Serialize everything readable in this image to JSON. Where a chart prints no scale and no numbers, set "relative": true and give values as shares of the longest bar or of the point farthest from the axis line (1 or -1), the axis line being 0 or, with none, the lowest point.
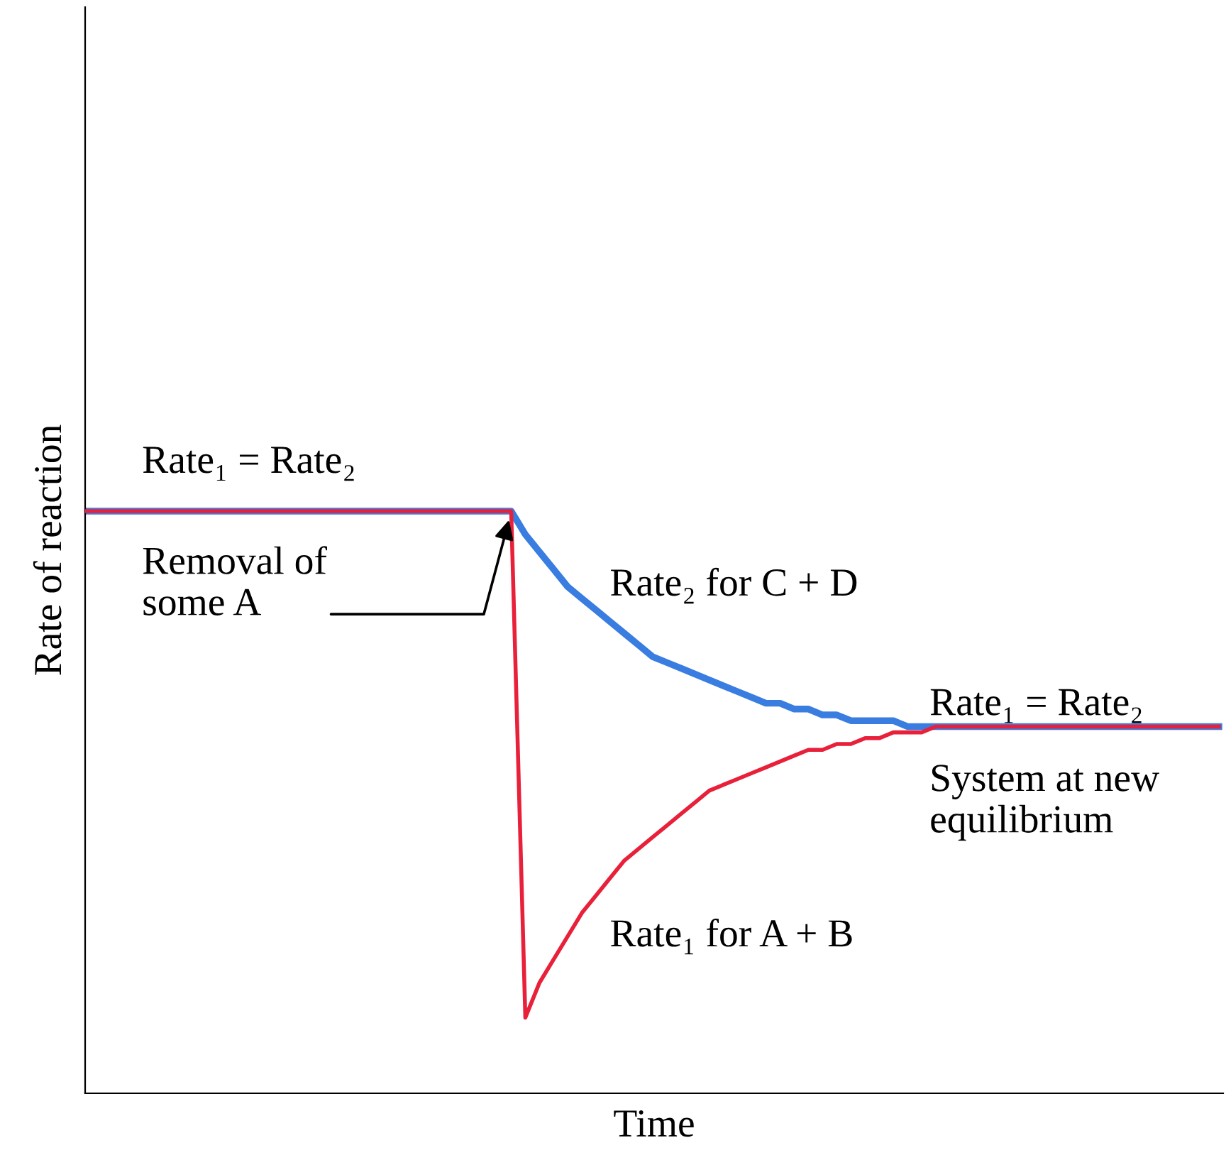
{
  "chart_data": {
    "type": "line",
    "relative": true,
    "xlabel": "Time",
    "ylabel": "Rate of reaction",
    "categories": [
      null,
      null,
      null,
      null,
      null,
      null,
      null,
      null,
      null,
      null,
      null,
      null,
      null,
      null,
      null,
      null,
      null,
      null,
      null,
      null,
      null,
      null,
      null,
      null,
      null,
      null,
      null,
      null,
      null,
      null,
      null,
      null,
      null,
      null,
      null,
      null,
      null,
      null,
      null,
      null,
      null,
      null,
      null,
      null,
      null,
      null,
      null,
      null,
      null,
      null,
      null,
      null,
      null,
      null,
      null,
      null,
      null,
      null,
      null,
      null,
      null,
      null,
      null,
      null,
      null,
      null,
      null,
      null,
      null,
      null,
      null,
      null,
      null,
      null,
      null,
      null,
      null,
      null,
      null,
      null,
      null
    ],
    "series": [
      {
        "color": "#3a7de0",
        "values": [
          1,
          1,
          1,
          1,
          1,
          1,
          1,
          1,
          1,
          1,
          1,
          1,
          1,
          1,
          1,
          1,
          1,
          1,
          1,
          1,
          1,
          1,
          1,
          1,
          1,
          1,
          1,
          1,
          1,
          1,
          1.0,
          0.96,
          0.93,
          0.9,
          0.87,
          0.85,
          0.83,
          0.81,
          0.79,
          0.77,
          0.75,
          0.74,
          0.73,
          0.72,
          0.71,
          0.7,
          0.69,
          0.68,
          0.67,
          0.67,
          0.66,
          0.66,
          0.65,
          0.65,
          0.64,
          0.64,
          0.64,
          0.64,
          0.63,
          0.63,
          0.63,
          0.63,
          0.63,
          0.63,
          0.63,
          0.63,
          0.63,
          0.63,
          0.63,
          0.63,
          0.63,
          0.63,
          0.63,
          0.63,
          0.63,
          0.63,
          0.63,
          0.63,
          0.63,
          0.63,
          0.63
        ]
      },
      {
        "color": "#e8203a",
        "values": [
          1,
          1,
          1,
          1,
          1,
          1,
          1,
          1,
          1,
          1,
          1,
          1,
          1,
          1,
          1,
          1,
          1,
          1,
          1,
          1,
          1,
          1,
          1,
          1,
          1,
          1,
          1,
          1,
          1,
          1,
          1,
          0.13,
          0.19,
          0.23,
          0.27,
          0.31,
          0.34,
          0.37,
          0.4,
          0.42,
          0.44,
          0.46,
          0.48,
          0.5,
          0.52,
          0.53,
          0.54,
          0.55,
          0.56,
          0.57,
          0.58,
          0.59,
          0.59,
          0.6,
          0.6,
          0.61,
          0.61,
          0.62,
          0.62,
          0.62,
          0.63,
          0.63,
          0.63,
          0.63,
          0.63,
          0.63,
          0.63,
          0.63,
          0.63,
          0.63,
          0.63,
          0.63,
          0.63,
          0.63,
          0.63,
          0.63,
          0.63,
          0.63,
          0.63,
          0.63,
          0.63
        ]
      }
    ],
    "annotations": [
      "Rate₁ = Rate₂",
      "Removal of\nsome A",
      "Rate₂ for C + D",
      "Rate₁ = Rate₂",
      "System at new\nequilibrium",
      "Rate₁ for A + B"
    ],
    "legend": false,
    "marker": "none",
    "line_style": "solid"
  }
}
